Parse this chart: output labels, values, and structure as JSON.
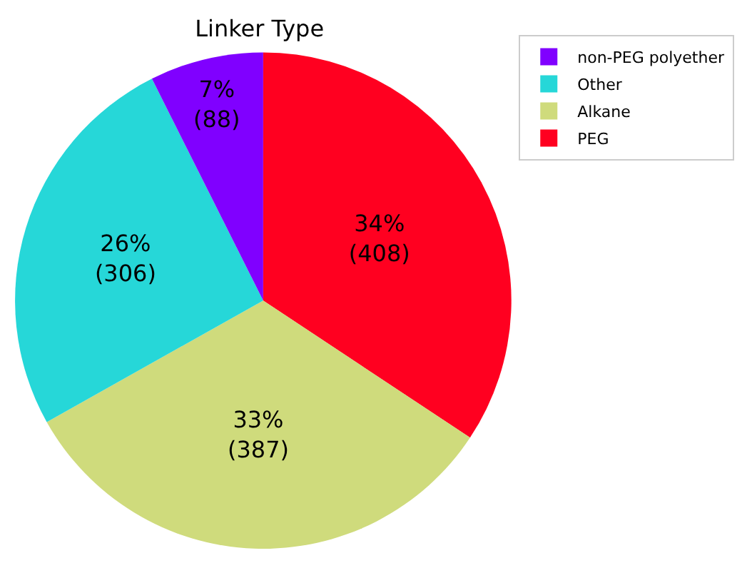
{
  "chart_data": {
    "type": "pie",
    "title": "Linker Type",
    "categories": [
      "PEG",
      "Alkane",
      "Other",
      "non-PEG polyether"
    ],
    "values": [
      408,
      387,
      306,
      88
    ],
    "colors": [
      "#ff0020",
      "#cfdb7c",
      "#26d7d8",
      "#8000ff"
    ],
    "value_labels": [
      "34%\n(408)",
      "33%\n(387)",
      "26%\n(306)",
      "7%\n(88)"
    ],
    "legend": "top right"
  }
}
